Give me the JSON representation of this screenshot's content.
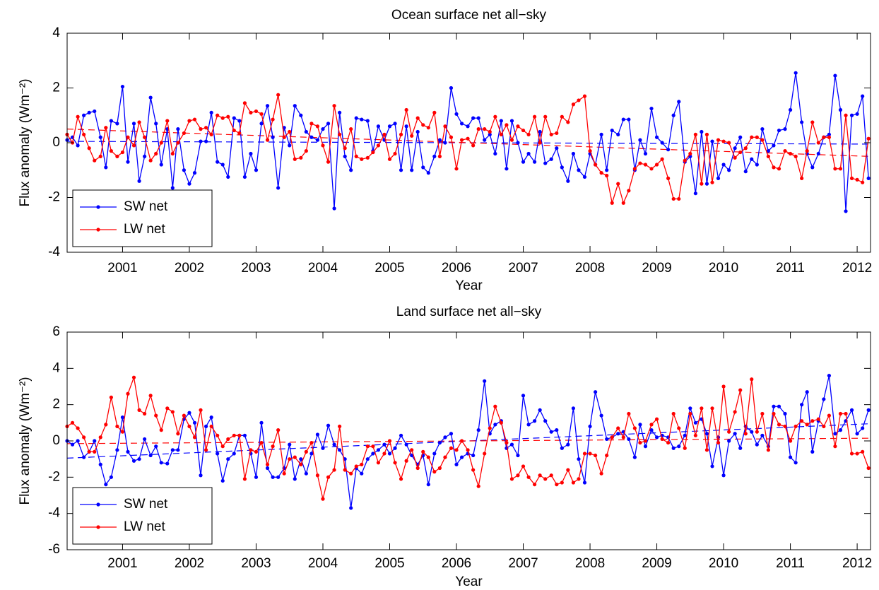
{
  "chart_data": [
    {
      "type": "line",
      "title": "Ocean surface net all−sky",
      "xlabel": "Year",
      "ylabel": "Flux anomaly (Wm⁻²)",
      "x": [
        2000.17,
        2000.25,
        2000.33,
        2000.42,
        2000.5,
        2000.58,
        2000.67,
        2000.75,
        2000.83,
        2000.92,
        2001.0,
        2001.08,
        2001.17,
        2001.25,
        2001.33,
        2001.42,
        2001.5,
        2001.58,
        2001.67,
        2001.75,
        2001.83,
        2001.92,
        2002.0,
        2002.08,
        2002.17,
        2002.25,
        2002.33,
        2002.42,
        2002.5,
        2002.58,
        2002.67,
        2002.75,
        2002.83,
        2002.92,
        2003.0,
        2003.08,
        2003.17,
        2003.25,
        2003.33,
        2003.42,
        2003.5,
        2003.58,
        2003.67,
        2003.75,
        2003.83,
        2003.92,
        2004.0,
        2004.08,
        2004.17,
        2004.25,
        2004.33,
        2004.42,
        2004.5,
        2004.58,
        2004.67,
        2004.75,
        2004.83,
        2004.92,
        2005.0,
        2005.08,
        2005.17,
        2005.25,
        2005.33,
        2005.42,
        2005.5,
        2005.58,
        2005.67,
        2005.75,
        2005.83,
        2005.92,
        2006.0,
        2006.08,
        2006.17,
        2006.25,
        2006.33,
        2006.42,
        2006.5,
        2006.58,
        2006.67,
        2006.75,
        2006.83,
        2006.92,
        2007.0,
        2007.08,
        2007.17,
        2007.25,
        2007.33,
        2007.42,
        2007.5,
        2007.58,
        2007.67,
        2007.75,
        2007.83,
        2007.92,
        2008.0,
        2008.08,
        2008.17,
        2008.25,
        2008.33,
        2008.42,
        2008.5,
        2008.58,
        2008.67,
        2008.75,
        2008.83,
        2008.92,
        2009.0,
        2009.08,
        2009.17,
        2009.25,
        2009.33,
        2009.42,
        2009.5,
        2009.58,
        2009.67,
        2009.75,
        2009.83,
        2009.92,
        2010.0,
        2010.08,
        2010.17,
        2010.25,
        2010.33,
        2010.42,
        2010.5,
        2010.58,
        2010.67,
        2010.75,
        2010.83,
        2010.92,
        2011.0,
        2011.08,
        2011.17,
        2011.25,
        2011.33,
        2011.42,
        2011.5,
        2011.58,
        2011.67,
        2011.75,
        2011.83,
        2011.92,
        2012.0,
        2012.08,
        2012.17
      ],
      "xlim": [
        2000.17,
        2012.2
      ],
      "xticks": [
        2001,
        2002,
        2003,
        2004,
        2005,
        2006,
        2007,
        2008,
        2009,
        2010,
        2011,
        2012
      ],
      "ylim": [
        -4,
        4
      ],
      "yticks": [
        -4,
        -2,
        0,
        2,
        4
      ],
      "legend": "lower left",
      "series": [
        {
          "name": "SW net",
          "color": "#0000ff",
          "values": [
            0.1,
            0.2,
            -0.1,
            1.0,
            1.1,
            1.15,
            0.2,
            -0.9,
            0.8,
            0.7,
            2.05,
            -0.7,
            0.7,
            -1.4,
            -0.5,
            1.65,
            0.7,
            -0.8,
            0.5,
            -1.65,
            0.5,
            -1.0,
            -1.5,
            -1.1,
            0.05,
            0.05,
            1.1,
            -0.7,
            -0.8,
            -1.25,
            0.9,
            0.8,
            -1.25,
            -0.4,
            -1.0,
            0.7,
            1.35,
            0.2,
            -1.65,
            0.55,
            -0.1,
            1.35,
            1.0,
            0.4,
            0.2,
            0.1,
            0.5,
            0.7,
            -2.4,
            1.1,
            -0.5,
            -1.0,
            0.9,
            0.85,
            0.8,
            -0.3,
            0.6,
            0.1,
            0.6,
            0.7,
            -1.0,
            0.6,
            -1.0,
            0.4,
            -0.9,
            -1.1,
            -0.5,
            0.1,
            0.0,
            2.0,
            1.05,
            0.7,
            0.6,
            0.9,
            0.9,
            0.1,
            0.3,
            -0.4,
            0.8,
            -0.95,
            0.8,
            0.0,
            -0.7,
            -0.4,
            -0.7,
            0.4,
            -0.75,
            -0.6,
            -0.2,
            -0.9,
            -1.4,
            -0.4,
            -1.0,
            -1.25,
            -0.4,
            -0.8,
            0.3,
            -1.0,
            0.45,
            0.3,
            0.85,
            0.85,
            -1.0,
            0.1,
            -0.4,
            1.25,
            0.2,
            0.0,
            -0.25,
            1.0,
            1.5,
            -0.7,
            -0.5,
            -1.85,
            0.4,
            -1.5,
            0.05,
            -1.3,
            -0.8,
            -1.0,
            -0.2,
            0.2,
            -1.05,
            -0.6,
            -0.8,
            0.5,
            -0.3,
            -0.1,
            0.45,
            0.5,
            1.2,
            2.55,
            0.75,
            -0.4,
            -0.9,
            -0.4,
            0.2,
            0.3,
            2.45,
            1.2,
            -2.5,
            1.0,
            1.05,
            1.7,
            -1.3
          ]
        },
        {
          "name": "LW net",
          "color": "#ff0000",
          "values": [
            0.3,
            0.0,
            0.95,
            0.3,
            -0.2,
            -0.65,
            -0.5,
            0.55,
            -0.3,
            -0.5,
            -0.35,
            0.2,
            -0.1,
            0.75,
            0.2,
            -0.65,
            -0.4,
            0.0,
            0.8,
            -0.4,
            0.0,
            0.35,
            0.8,
            0.85,
            0.5,
            0.55,
            0.3,
            1.0,
            0.9,
            0.95,
            0.45,
            0.35,
            1.45,
            1.1,
            1.15,
            1.05,
            0.1,
            0.85,
            1.75,
            0.2,
            0.4,
            -0.6,
            -0.55,
            -0.3,
            0.7,
            0.6,
            -0.1,
            -0.7,
            1.35,
            0.3,
            -0.2,
            0.5,
            -0.5,
            -0.6,
            -0.55,
            -0.35,
            -0.1,
            0.3,
            -0.6,
            -0.4,
            0.3,
            1.2,
            0.25,
            0.9,
            0.65,
            0.55,
            1.1,
            -0.5,
            0.6,
            0.2,
            -0.95,
            0.1,
            0.15,
            -0.1,
            0.5,
            0.5,
            0.4,
            0.95,
            0.3,
            0.65,
            0.1,
            0.6,
            0.45,
            0.3,
            0.95,
            0.0,
            0.95,
            0.3,
            0.35,
            0.95,
            0.75,
            1.4,
            1.55,
            1.7,
            -0.3,
            -0.8,
            -1.1,
            -1.2,
            -2.2,
            -1.5,
            -2.2,
            -1.75,
            -0.95,
            -0.75,
            -0.8,
            -0.95,
            -0.8,
            -0.6,
            -1.3,
            -2.05,
            -2.05,
            -0.65,
            -0.4,
            0.3,
            -1.5,
            0.3,
            -1.45,
            0.1,
            0.05,
            0.0,
            -0.55,
            -0.35,
            -0.2,
            0.2,
            0.2,
            0.1,
            -0.5,
            -0.9,
            -0.95,
            -0.3,
            -0.4,
            -0.5,
            -1.3,
            -0.3,
            0.75,
            0.0,
            0.2,
            0.2,
            -0.95,
            -0.95,
            1.0,
            -1.3,
            -1.35,
            -1.45,
            0.15
          ]
        }
      ],
      "trend_lines": [
        {
          "color": "#0000ff",
          "x": [
            2000.17,
            2012.2
          ],
          "values": [
            0.05,
            -0.05
          ]
        },
        {
          "color": "#ff0000",
          "x": [
            2000.17,
            2012.2
          ],
          "values": [
            0.5,
            -0.5
          ]
        }
      ]
    },
    {
      "type": "line",
      "title": "Land surface net all−sky",
      "xlabel": "Year",
      "ylabel": "Flux anomaly (Wm⁻²)",
      "x": [
        2000.17,
        2000.25,
        2000.33,
        2000.42,
        2000.5,
        2000.58,
        2000.67,
        2000.75,
        2000.83,
        2000.92,
        2001.0,
        2001.08,
        2001.17,
        2001.25,
        2001.33,
        2001.42,
        2001.5,
        2001.58,
        2001.67,
        2001.75,
        2001.83,
        2001.92,
        2002.0,
        2002.08,
        2002.17,
        2002.25,
        2002.33,
        2002.42,
        2002.5,
        2002.58,
        2002.67,
        2002.75,
        2002.83,
        2002.92,
        2003.0,
        2003.08,
        2003.17,
        2003.25,
        2003.33,
        2003.42,
        2003.5,
        2003.58,
        2003.67,
        2003.75,
        2003.83,
        2003.92,
        2004.0,
        2004.08,
        2004.17,
        2004.25,
        2004.33,
        2004.42,
        2004.5,
        2004.58,
        2004.67,
        2004.75,
        2004.83,
        2004.92,
        2005.0,
        2005.08,
        2005.17,
        2005.25,
        2005.33,
        2005.42,
        2005.5,
        2005.58,
        2005.67,
        2005.75,
        2005.83,
        2005.92,
        2006.0,
        2006.08,
        2006.17,
        2006.25,
        2006.33,
        2006.42,
        2006.5,
        2006.58,
        2006.67,
        2006.75,
        2006.83,
        2006.92,
        2007.0,
        2007.08,
        2007.17,
        2007.25,
        2007.33,
        2007.42,
        2007.5,
        2007.58,
        2007.67,
        2007.75,
        2007.83,
        2007.92,
        2008.0,
        2008.08,
        2008.17,
        2008.25,
        2008.33,
        2008.42,
        2008.5,
        2008.58,
        2008.67,
        2008.75,
        2008.83,
        2008.92,
        2009.0,
        2009.08,
        2009.17,
        2009.25,
        2009.33,
        2009.42,
        2009.5,
        2009.58,
        2009.67,
        2009.75,
        2009.83,
        2009.92,
        2010.0,
        2010.08,
        2010.17,
        2010.25,
        2010.33,
        2010.42,
        2010.5,
        2010.58,
        2010.67,
        2010.75,
        2010.83,
        2010.92,
        2011.0,
        2011.08,
        2011.17,
        2011.25,
        2011.33,
        2011.42,
        2011.5,
        2011.58,
        2011.67,
        2011.75,
        2011.83,
        2011.92,
        2012.0,
        2012.08,
        2012.17
      ],
      "xlim": [
        2000.17,
        2012.2
      ],
      "xticks": [
        2001,
        2002,
        2003,
        2004,
        2005,
        2006,
        2007,
        2008,
        2009,
        2010,
        2011,
        2012
      ],
      "ylim": [
        -6,
        6
      ],
      "yticks": [
        -6,
        -4,
        -2,
        0,
        2,
        4,
        6
      ],
      "legend": "lower left",
      "series": [
        {
          "name": "SW net",
          "color": "#0000ff",
          "values": [
            0.0,
            -0.2,
            0.0,
            -0.9,
            -0.6,
            0.0,
            -1.3,
            -2.4,
            -2.0,
            -0.5,
            1.3,
            -0.6,
            -1.1,
            -1.0,
            0.1,
            -0.8,
            -0.3,
            -1.2,
            -1.25,
            -0.5,
            -0.5,
            1.2,
            1.55,
            1.0,
            -1.9,
            0.8,
            1.3,
            -0.7,
            -2.2,
            -1.0,
            -0.7,
            0.3,
            0.3,
            -0.7,
            -2.0,
            1.0,
            -1.5,
            -2.0,
            -2.0,
            -1.5,
            -0.2,
            -2.1,
            -1.0,
            -1.8,
            -0.7,
            0.35,
            -0.4,
            0.85,
            -0.2,
            -0.5,
            -1.0,
            -3.7,
            -1.5,
            -1.8,
            -1.0,
            -0.7,
            -0.5,
            -0.2,
            -0.7,
            -0.4,
            0.3,
            -0.2,
            -0.8,
            -1.3,
            -0.8,
            -2.4,
            -0.7,
            -0.1,
            0.2,
            0.4,
            -1.3,
            -0.9,
            -0.7,
            -0.8,
            0.6,
            3.3,
            0.4,
            0.9,
            1.1,
            -0.4,
            -0.2,
            -0.8,
            2.5,
            0.9,
            1.1,
            1.7,
            1.1,
            0.5,
            0.6,
            -0.4,
            -0.2,
            1.8,
            -1.0,
            -2.3,
            0.8,
            2.7,
            1.4,
            0.1,
            0.2,
            0.4,
            0.5,
            0.1,
            -0.9,
            0.9,
            -0.3,
            0.6,
            0.2,
            0.3,
            0.2,
            -0.4,
            -0.3,
            0.3,
            1.8,
            1.0,
            1.2,
            0.4,
            -1.4,
            0.2,
            -1.9,
            0.0,
            0.4,
            -0.4,
            0.8,
            0.5,
            -0.2,
            0.3,
            -0.3,
            1.9,
            1.9,
            1.5,
            -0.9,
            -1.2,
            2.0,
            2.7,
            -0.6,
            1.1,
            2.3,
            3.6,
            0.4,
            0.6,
            1.1,
            1.7,
            0.4,
            0.7,
            1.7
          ]
        },
        {
          "name": "LW net",
          "color": "#ff0000",
          "values": [
            0.8,
            1.0,
            0.7,
            0.2,
            -0.6,
            -0.6,
            0.2,
            0.9,
            2.4,
            0.8,
            0.5,
            2.6,
            3.5,
            1.7,
            1.5,
            2.5,
            1.4,
            0.6,
            1.8,
            1.6,
            0.4,
            1.4,
            0.8,
            0.2,
            1.7,
            -0.5,
            0.8,
            0.3,
            -0.3,
            0.1,
            0.3,
            0.3,
            -2.1,
            -0.5,
            -0.6,
            -0.1,
            -1.3,
            -0.3,
            0.6,
            -1.8,
            -1.0,
            -0.9,
            -1.3,
            -0.6,
            -0.1,
            -1.9,
            -3.2,
            -2.0,
            -1.6,
            0.8,
            -1.6,
            -1.8,
            -1.4,
            -1.3,
            -0.3,
            -0.3,
            -1.2,
            -0.7,
            0.0,
            -1.2,
            -2.1,
            -1.1,
            -0.5,
            -1.5,
            -0.6,
            -0.9,
            -1.7,
            -1.5,
            -0.9,
            -0.4,
            -0.5,
            0.0,
            -0.5,
            -1.6,
            -2.5,
            -0.7,
            0.7,
            1.9,
            1.0,
            -0.1,
            -2.1,
            -1.9,
            -1.4,
            -2.0,
            -2.4,
            -1.9,
            -2.1,
            -1.9,
            -2.4,
            -2.3,
            -1.6,
            -2.3,
            -2.1,
            -0.7,
            -0.7,
            -0.8,
            -1.8,
            -0.8,
            0.2,
            0.7,
            0.2,
            1.5,
            0.7,
            -0.1,
            0.0,
            0.9,
            1.2,
            0.1,
            -0.1,
            1.5,
            0.7,
            -0.4,
            1.5,
            0.3,
            1.8,
            -0.5,
            1.8,
            -0.1,
            3.0,
            0.5,
            1.6,
            2.8,
            0.4,
            3.4,
            0.5,
            1.5,
            -0.5,
            1.5,
            0.9,
            0.8,
            0.0,
            0.8,
            1.1,
            0.9,
            1.1,
            1.2,
            0.8,
            1.4,
            -0.3,
            1.5,
            1.5,
            -0.7,
            -0.7,
            -0.6,
            -1.5
          ]
        }
      ],
      "trend_lines": [
        {
          "color": "#0000ff",
          "x": [
            2000.17,
            2012.2
          ],
          "values": [
            -0.95,
            0.95
          ]
        },
        {
          "color": "#ff0000",
          "x": [
            2000.17,
            2012.2
          ],
          "values": [
            -0.15,
            0.15
          ]
        }
      ]
    }
  ]
}
